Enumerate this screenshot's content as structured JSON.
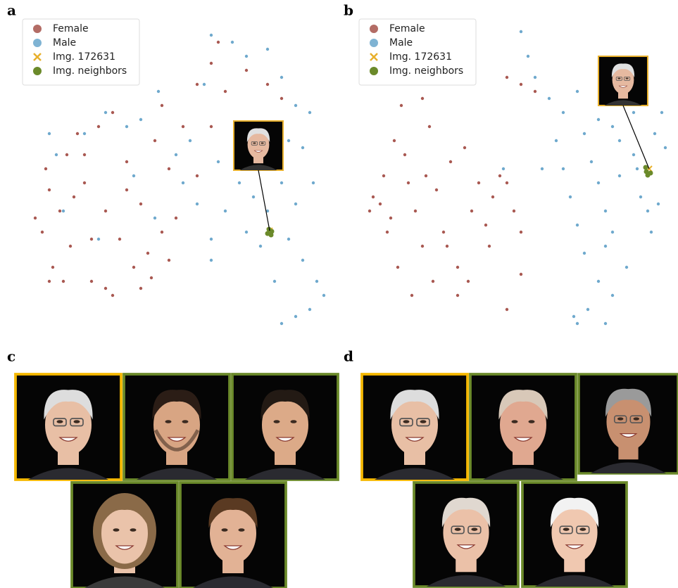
{
  "chart_data": [
    {
      "type": "scatter",
      "label": "a",
      "legend": "upper left",
      "series": [
        {
          "name": "Female",
          "color": "#a0473f",
          "marker": "dot",
          "x": [
            10,
            20,
            30,
            35,
            45,
            55,
            60,
            70,
            80,
            90,
            100,
            110,
            120,
            130,
            140,
            150,
            160,
            170,
            180,
            190,
            200,
            210,
            110,
            50,
            25,
            90,
            160,
            190,
            220,
            240,
            260,
            280,
            310,
            340,
            260,
            270,
            360,
            240,
            200,
            140,
            80,
            120,
            65,
            175,
            30
          ],
          "y": [
            275,
            295,
            235,
            345,
            265,
            185,
            315,
            155,
            225,
            365,
            145,
            265,
            385,
            305,
            195,
            345,
            255,
            325,
            165,
            295,
            335,
            275,
            375,
            365,
            205,
            305,
            375,
            115,
            145,
            85,
            55,
            95,
            65,
            85,
            145,
            25,
            105,
            215,
            205,
            235,
            185,
            125,
            245,
            360,
            365
          ]
        },
        {
          "name": "Male",
          "color": "#5fa0c8",
          "marker": "dot",
          "x": [
            290,
            310,
            260,
            340,
            360,
            380,
            400,
            250,
            230,
            270,
            300,
            320,
            340,
            360,
            380,
            370,
            390,
            410,
            420,
            400,
            380,
            360,
            330,
            310,
            280,
            260,
            240,
            220,
            210,
            185,
            160,
            140,
            110,
            80,
            40,
            30,
            50,
            100,
            180,
            150,
            390,
            405,
            260,
            350,
            370
          ],
          "y": [
            25,
            45,
            15,
            35,
            75,
            115,
            125,
            85,
            165,
            195,
            225,
            245,
            265,
            225,
            255,
            305,
            335,
            365,
            385,
            405,
            415,
            425,
            315,
            295,
            265,
            305,
            255,
            225,
            185,
            95,
            135,
            145,
            125,
            155,
            185,
            155,
            265,
            305,
            275,
            215,
            175,
            225,
            335,
            365,
            165
          ]
        },
        {
          "name": "Img. 172631",
          "color": "#e8b02c",
          "marker": "cross",
          "x": [
            343
          ],
          "y": [
            293
          ]
        },
        {
          "name": "Img. neighbors",
          "color": "#6b8a2a",
          "marker": "dot-large",
          "x": [
            340,
            345,
            346,
            342
          ],
          "y": [
            297,
            299,
            294,
            291
          ]
        }
      ]
    },
    {
      "type": "scatter",
      "label": "b",
      "legend": "upper left",
      "series": [
        {
          "name": "Female",
          "color": "#a0473f",
          "marker": "dot",
          "x": [
            5,
            10,
            25,
            30,
            40,
            45,
            50,
            60,
            65,
            70,
            80,
            90,
            95,
            100,
            110,
            120,
            130,
            140,
            150,
            160,
            170,
            180,
            190,
            200,
            210,
            220,
            130,
            200,
            220,
            80,
            55,
            35,
            115,
            145,
            200,
            220,
            240,
            85,
            20,
            175
          ],
          "y": [
            265,
            245,
            215,
            295,
            165,
            345,
            115,
            225,
            385,
            265,
            315,
            145,
            365,
            235,
            295,
            195,
            345,
            175,
            265,
            225,
            285,
            245,
            215,
            225,
            265,
            295,
            385,
            405,
            355,
            105,
            185,
            275,
            315,
            365,
            75,
            85,
            95,
            215,
            255,
            315
          ]
        },
        {
          "name": "Male",
          "color": "#5fa0c8",
          "marker": "dot",
          "x": [
            220,
            230,
            240,
            260,
            280,
            300,
            310,
            320,
            330,
            340,
            350,
            360,
            380,
            390,
            400,
            410,
            420,
            425,
            370,
            350,
            340,
            330,
            310,
            300,
            290,
            280,
            295,
            315,
            350,
            380,
            405,
            415,
            250,
            195,
            270,
            340,
            360,
            330,
            300,
            385
          ],
          "y": [
            10,
            45,
            75,
            105,
            125,
            95,
            155,
            195,
            225,
            265,
            295,
            215,
            185,
            245,
            265,
            155,
            125,
            175,
            345,
            385,
            425,
            365,
            325,
            285,
            245,
            205,
            415,
            405,
            145,
            125,
            295,
            255,
            205,
            205,
            165,
            315,
            165,
            135,
            425,
            205
          ]
        },
        {
          "name": "Img. 172631",
          "color": "#e8b02c",
          "marker": "cross",
          "x": [
            402
          ],
          "y": [
            205
          ]
        },
        {
          "name": "Img. neighbors",
          "color": "#6b8a2a",
          "marker": "dot-large",
          "x": [
            398,
            400,
            404,
            397
          ],
          "y": [
            209,
            214,
            211,
            203
          ]
        }
      ]
    }
  ],
  "galleries": [
    {
      "label": "c"
    },
    {
      "label": "d"
    }
  ]
}
